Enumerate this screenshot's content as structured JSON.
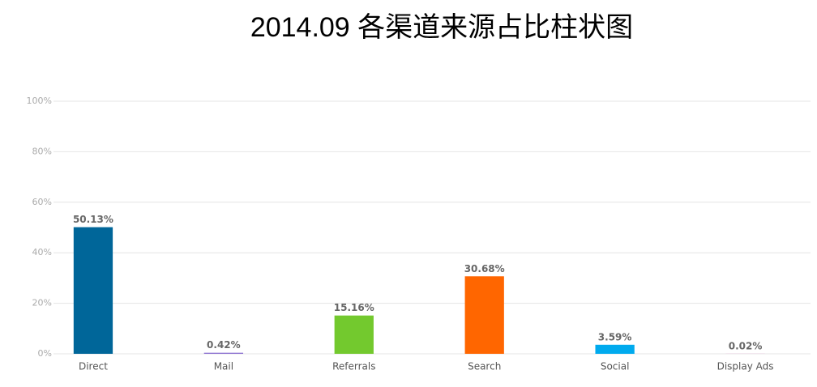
{
  "chart_data": {
    "type": "bar",
    "title": "2014.09 各渠道来源占比柱状图",
    "categories": [
      "Direct",
      "Mail",
      "Referrals",
      "Search",
      "Social",
      "Display Ads"
    ],
    "values": [
      50.13,
      0.42,
      15.16,
      30.68,
      3.59,
      0.02
    ],
    "value_labels": [
      "50.13%",
      "0.42%",
      "15.16%",
      "30.68%",
      "3.59%",
      "0.02%"
    ],
    "colors": [
      "#006699",
      "#8a6fd0",
      "#73c92e",
      "#ff6600",
      "#00aaee",
      "#e23fbf"
    ],
    "ylim": [
      0,
      100
    ],
    "yticks": [
      {
        "value": 0,
        "label": "0%"
      },
      {
        "value": 20,
        "label": "20%"
      },
      {
        "value": 40,
        "label": "40%"
      },
      {
        "value": 60,
        "label": "60%"
      },
      {
        "value": 80,
        "label": "80%"
      },
      {
        "value": 100,
        "label": "100%"
      }
    ],
    "grid": true
  }
}
